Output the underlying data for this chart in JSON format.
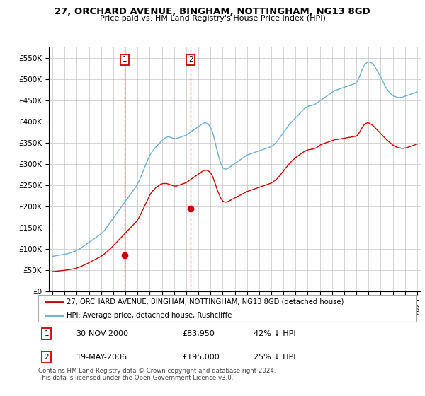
{
  "title": "27, ORCHARD AVENUE, BINGHAM, NOTTINGHAM, NG13 8GD",
  "subtitle": "Price paid vs. HM Land Registry's House Price Index (HPI)",
  "legend_line1": "27, ORCHARD AVENUE, BINGHAM, NOTTINGHAM, NG13 8GD (detached house)",
  "legend_line2": "HPI: Average price, detached house, Rushcliffe",
  "footnote": "Contains HM Land Registry data © Crown copyright and database right 2024.\nThis data is licensed under the Open Government Licence v3.0.",
  "transaction1_label": "1",
  "transaction1_date": "30-NOV-2000",
  "transaction1_price": "£83,950",
  "transaction1_hpi": "42% ↓ HPI",
  "transaction2_label": "2",
  "transaction2_date": "19-MAY-2006",
  "transaction2_price": "£195,000",
  "transaction2_hpi": "25% ↓ HPI",
  "red_color": "#cc0000",
  "blue_color": "#6baed6",
  "grid_color": "#cccccc",
  "bg_color": "#ffffff",
  "ylim": [
    0,
    575000
  ],
  "yticks": [
    0,
    50000,
    100000,
    150000,
    200000,
    250000,
    300000,
    350000,
    400000,
    450000,
    500000,
    550000
  ],
  "ytick_labels": [
    "£0",
    "£50K",
    "£100K",
    "£150K",
    "£200K",
    "£250K",
    "£300K",
    "£350K",
    "£400K",
    "£450K",
    "£500K",
    "£550K"
  ],
  "xlim_start": 1994.7,
  "xlim_end": 2025.3,
  "transaction1_x": 2000.92,
  "transaction1_y": 83950,
  "transaction2_x": 2006.38,
  "transaction2_y": 195000,
  "hpi_x": [
    1995.0,
    1995.1,
    1995.2,
    1995.3,
    1995.4,
    1995.5,
    1995.6,
    1995.7,
    1995.8,
    1995.9,
    1996.0,
    1996.1,
    1996.2,
    1996.3,
    1996.4,
    1996.5,
    1996.6,
    1996.7,
    1996.8,
    1996.9,
    1997.0,
    1997.1,
    1997.2,
    1997.3,
    1997.4,
    1997.5,
    1997.6,
    1997.7,
    1997.8,
    1997.9,
    1998.0,
    1998.1,
    1998.2,
    1998.3,
    1998.4,
    1998.5,
    1998.6,
    1998.7,
    1998.8,
    1998.9,
    1999.0,
    1999.1,
    1999.2,
    1999.3,
    1999.4,
    1999.5,
    1999.6,
    1999.7,
    1999.8,
    1999.9,
    2000.0,
    2000.1,
    2000.2,
    2000.3,
    2000.4,
    2000.5,
    2000.6,
    2000.7,
    2000.8,
    2000.9,
    2001.0,
    2001.1,
    2001.2,
    2001.3,
    2001.4,
    2001.5,
    2001.6,
    2001.7,
    2001.8,
    2001.9,
    2002.0,
    2002.1,
    2002.2,
    2002.3,
    2002.4,
    2002.5,
    2002.6,
    2002.7,
    2002.8,
    2002.9,
    2003.0,
    2003.1,
    2003.2,
    2003.3,
    2003.4,
    2003.5,
    2003.6,
    2003.7,
    2003.8,
    2003.9,
    2004.0,
    2004.1,
    2004.2,
    2004.3,
    2004.4,
    2004.5,
    2004.6,
    2004.7,
    2004.8,
    2004.9,
    2005.0,
    2005.1,
    2005.2,
    2005.3,
    2005.4,
    2005.5,
    2005.6,
    2005.7,
    2005.8,
    2005.9,
    2006.0,
    2006.1,
    2006.2,
    2006.3,
    2006.4,
    2006.5,
    2006.6,
    2006.7,
    2006.8,
    2006.9,
    2007.0,
    2007.1,
    2007.2,
    2007.3,
    2007.4,
    2007.5,
    2007.6,
    2007.7,
    2007.8,
    2007.9,
    2008.0,
    2008.1,
    2008.2,
    2008.3,
    2008.4,
    2008.5,
    2008.6,
    2008.7,
    2008.8,
    2008.9,
    2009.0,
    2009.1,
    2009.2,
    2009.3,
    2009.4,
    2009.5,
    2009.6,
    2009.7,
    2009.8,
    2009.9,
    2010.0,
    2010.1,
    2010.2,
    2010.3,
    2010.4,
    2010.5,
    2010.6,
    2010.7,
    2010.8,
    2010.9,
    2011.0,
    2011.1,
    2011.2,
    2011.3,
    2011.4,
    2011.5,
    2011.6,
    2011.7,
    2011.8,
    2011.9,
    2012.0,
    2012.1,
    2012.2,
    2012.3,
    2012.4,
    2012.5,
    2012.6,
    2012.7,
    2012.8,
    2012.9,
    2013.0,
    2013.1,
    2013.2,
    2013.3,
    2013.4,
    2013.5,
    2013.6,
    2013.7,
    2013.8,
    2013.9,
    2014.0,
    2014.1,
    2014.2,
    2014.3,
    2014.4,
    2014.5,
    2014.6,
    2014.7,
    2014.8,
    2014.9,
    2015.0,
    2015.1,
    2015.2,
    2015.3,
    2015.4,
    2015.5,
    2015.6,
    2015.7,
    2015.8,
    2015.9,
    2016.0,
    2016.1,
    2016.2,
    2016.3,
    2016.4,
    2016.5,
    2016.6,
    2016.7,
    2016.8,
    2016.9,
    2017.0,
    2017.1,
    2017.2,
    2017.3,
    2017.4,
    2017.5,
    2017.6,
    2017.7,
    2017.8,
    2017.9,
    2018.0,
    2018.1,
    2018.2,
    2018.3,
    2018.4,
    2018.5,
    2018.6,
    2018.7,
    2018.8,
    2018.9,
    2019.0,
    2019.1,
    2019.2,
    2019.3,
    2019.4,
    2019.5,
    2019.6,
    2019.7,
    2019.8,
    2019.9,
    2020.0,
    2020.1,
    2020.2,
    2020.3,
    2020.4,
    2020.5,
    2020.6,
    2020.7,
    2020.8,
    2020.9,
    2021.0,
    2021.1,
    2021.2,
    2021.3,
    2021.4,
    2021.5,
    2021.6,
    2021.7,
    2021.8,
    2021.9,
    2022.0,
    2022.1,
    2022.2,
    2022.3,
    2022.4,
    2022.5,
    2022.6,
    2022.7,
    2022.8,
    2022.9,
    2023.0,
    2023.1,
    2023.2,
    2023.3,
    2023.4,
    2023.5,
    2023.6,
    2023.7,
    2023.8,
    2023.9,
    2024.0,
    2024.1,
    2024.2,
    2024.3,
    2024.4,
    2024.5,
    2024.6,
    2024.7,
    2024.8,
    2024.9,
    2025.0
  ],
  "hpi_y": [
    82000,
    82500,
    83000,
    83500,
    84000,
    84500,
    85000,
    85500,
    86000,
    86500,
    87000,
    87500,
    88000,
    88500,
    89500,
    90500,
    91500,
    92500,
    93500,
    94500,
    96000,
    97500,
    99000,
    101000,
    103000,
    105000,
    107000,
    109000,
    111000,
    113000,
    115000,
    117000,
    119000,
    121000,
    123000,
    125000,
    127000,
    129000,
    131000,
    133000,
    135000,
    138000,
    141000,
    144000,
    148000,
    152000,
    156000,
    160000,
    164000,
    168000,
    172000,
    176000,
    180000,
    184000,
    188000,
    192000,
    196000,
    200000,
    204000,
    208000,
    212000,
    216000,
    220000,
    224000,
    228000,
    232000,
    236000,
    240000,
    244000,
    248000,
    253000,
    259000,
    265000,
    272000,
    279000,
    286000,
    293000,
    300000,
    307000,
    314000,
    320000,
    325000,
    329000,
    333000,
    337000,
    340000,
    343000,
    346000,
    349000,
    352000,
    355000,
    358000,
    360000,
    362000,
    363000,
    364000,
    364000,
    363000,
    362000,
    361000,
    360000,
    360000,
    360000,
    361000,
    362000,
    363000,
    364000,
    365000,
    366000,
    367000,
    368000,
    370000,
    372000,
    374000,
    376000,
    378000,
    380000,
    382000,
    384000,
    386000,
    388000,
    390000,
    392000,
    394000,
    396000,
    397000,
    397000,
    396000,
    394000,
    391000,
    387000,
    381000,
    372000,
    361000,
    349000,
    337000,
    326000,
    315000,
    306000,
    298000,
    292000,
    289000,
    288000,
    288000,
    289000,
    291000,
    293000,
    295000,
    297000,
    299000,
    301000,
    303000,
    305000,
    307000,
    309000,
    311000,
    313000,
    315000,
    317000,
    319000,
    321000,
    322000,
    323000,
    324000,
    325000,
    326000,
    327000,
    328000,
    329000,
    330000,
    331000,
    332000,
    333000,
    334000,
    335000,
    336000,
    337000,
    338000,
    339000,
    340000,
    341000,
    343000,
    345000,
    348000,
    351000,
    354000,
    358000,
    362000,
    366000,
    370000,
    374000,
    378000,
    382000,
    386000,
    390000,
    394000,
    397000,
    400000,
    403000,
    406000,
    409000,
    412000,
    415000,
    418000,
    421000,
    424000,
    427000,
    430000,
    432000,
    434000,
    436000,
    437000,
    438000,
    438000,
    439000,
    440000,
    441000,
    443000,
    445000,
    447000,
    449000,
    451000,
    453000,
    455000,
    457000,
    459000,
    461000,
    463000,
    465000,
    467000,
    469000,
    471000,
    473000,
    474000,
    475000,
    476000,
    477000,
    478000,
    479000,
    480000,
    481000,
    482000,
    483000,
    484000,
    485000,
    486000,
    487000,
    488000,
    489000,
    490000,
    492000,
    496000,
    502000,
    509000,
    517000,
    524000,
    530000,
    535000,
    538000,
    540000,
    541000,
    541000,
    540000,
    538000,
    535000,
    531000,
    526000,
    521000,
    516000,
    511000,
    506000,
    500000,
    494000,
    488000,
    483000,
    478000,
    474000,
    470000,
    467000,
    464000,
    462000,
    460000,
    459000,
    458000,
    457000,
    457000,
    457000,
    457000,
    458000,
    459000,
    460000,
    461000,
    462000,
    463000,
    464000,
    465000,
    466000,
    467000,
    468000,
    469000,
    470000
  ],
  "red_y": [
    46000,
    46200,
    46500,
    46800,
    47100,
    47400,
    47700,
    48000,
    48300,
    48600,
    49000,
    49400,
    49800,
    50200,
    50700,
    51200,
    51700,
    52200,
    52800,
    53400,
    54500,
    55500,
    56500,
    57500,
    58800,
    60000,
    61300,
    62500,
    64000,
    65500,
    67000,
    68500,
    70000,
    71500,
    73000,
    74500,
    76000,
    77500,
    79000,
    80500,
    82000,
    84000,
    86000,
    88500,
    91000,
    93500,
    96000,
    98500,
    101000,
    104000,
    107000,
    110000,
    113000,
    116000,
    119000,
    122000,
    125000,
    128000,
    131000,
    134000,
    137000,
    140000,
    143000,
    146000,
    149000,
    152000,
    155000,
    158000,
    161000,
    164000,
    168000,
    173000,
    178000,
    184000,
    190000,
    196000,
    202000,
    208000,
    214000,
    220000,
    226000,
    231000,
    235000,
    238000,
    241000,
    244000,
    246000,
    248000,
    250000,
    252000,
    253000,
    254000,
    254000,
    254000,
    254000,
    253000,
    252000,
    251000,
    250000,
    249000,
    248000,
    248000,
    248000,
    249000,
    250000,
    251000,
    252000,
    253000,
    254000,
    255000,
    256000,
    258000,
    260000,
    262000,
    264000,
    266000,
    268000,
    270000,
    272000,
    274000,
    276000,
    278000,
    280000,
    282000,
    284000,
    285000,
    285000,
    285000,
    284000,
    282000,
    279000,
    275000,
    269000,
    261000,
    253000,
    244000,
    236000,
    229000,
    222000,
    217000,
    213000,
    211000,
    210000,
    210000,
    211000,
    212000,
    214000,
    215000,
    217000,
    218000,
    220000,
    221000,
    223000,
    224000,
    226000,
    227000,
    229000,
    230000,
    232000,
    233000,
    235000,
    236000,
    237000,
    238000,
    239000,
    240000,
    241000,
    242000,
    243000,
    244000,
    245000,
    246000,
    247000,
    248000,
    249000,
    250000,
    251000,
    252000,
    253000,
    254000,
    255000,
    257000,
    259000,
    261000,
    263000,
    266000,
    269000,
    272000,
    276000,
    280000,
    283000,
    287000,
    291000,
    294000,
    298000,
    301000,
    304000,
    307000,
    310000,
    312000,
    315000,
    317000,
    319000,
    321000,
    323000,
    325000,
    327000,
    329000,
    330000,
    332000,
    333000,
    334000,
    334000,
    335000,
    335000,
    336000,
    337000,
    338000,
    340000,
    342000,
    344000,
    346000,
    347000,
    348000,
    349000,
    350000,
    351000,
    352000,
    353000,
    354000,
    355000,
    356000,
    357000,
    358000,
    358000,
    358000,
    359000,
    359000,
    360000,
    360000,
    361000,
    361000,
    362000,
    362000,
    363000,
    363000,
    364000,
    364000,
    365000,
    365000,
    366000,
    368000,
    372000,
    377000,
    382000,
    387000,
    391000,
    394000,
    396000,
    397000,
    397000,
    396000,
    394000,
    392000,
    390000,
    387000,
    384000,
    381000,
    378000,
    375000,
    372000,
    369000,
    366000,
    363000,
    360000,
    357000,
    355000,
    352000,
    350000,
    347000,
    345000,
    343000,
    341000,
    340000,
    339000,
    338000,
    338000,
    337000,
    337000,
    337000,
    338000,
    338000,
    339000,
    340000,
    341000,
    342000,
    343000,
    344000,
    345000,
    346000,
    347000
  ]
}
